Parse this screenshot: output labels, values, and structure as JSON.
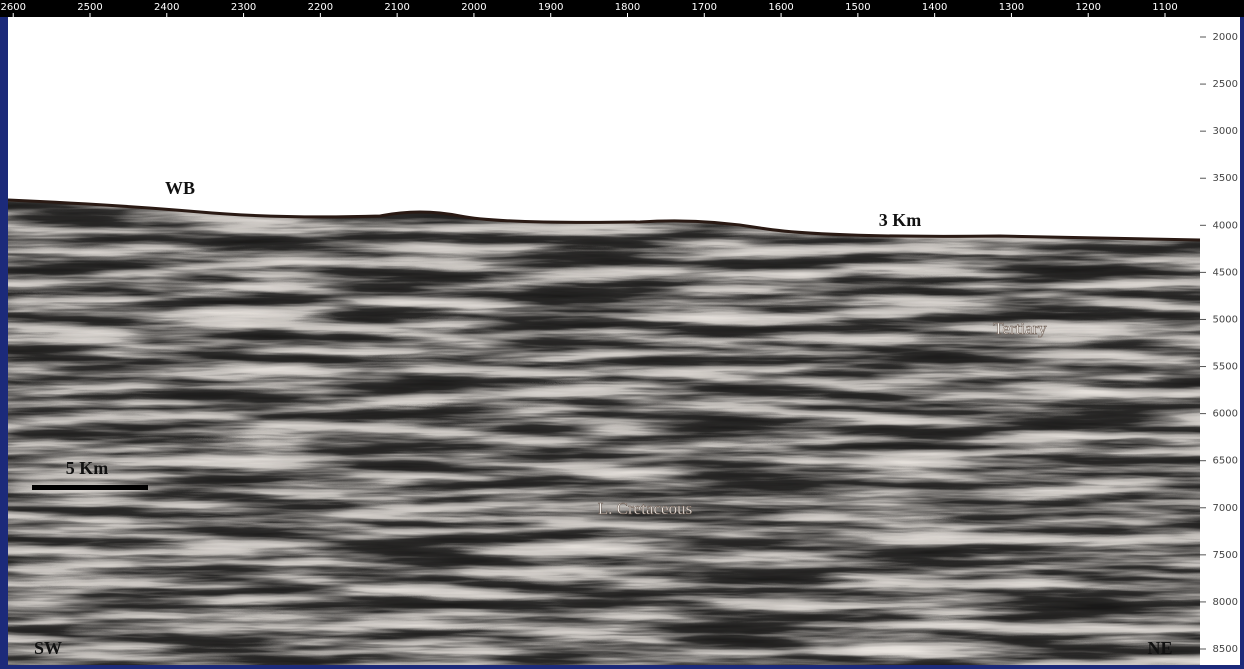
{
  "top_axis": {
    "ticks": [
      2600,
      2500,
      2400,
      2300,
      2200,
      2100,
      2000,
      1900,
      1800,
      1700,
      1600,
      1500,
      1400,
      1300,
      1200,
      1100
    ]
  },
  "right_axis": {
    "ticks": [
      2000,
      2500,
      3000,
      3500,
      4000,
      4500,
      5000,
      5500,
      6000,
      6500,
      7000,
      7500,
      8000,
      8500
    ]
  },
  "labels": {
    "water_bottom": "WB",
    "distance": "3 Km",
    "tertiary": "Tertiary",
    "cretaceous": "L. Cretaceous",
    "scale_bar": "5 Km",
    "southwest": "SW",
    "northeast": "NE"
  }
}
